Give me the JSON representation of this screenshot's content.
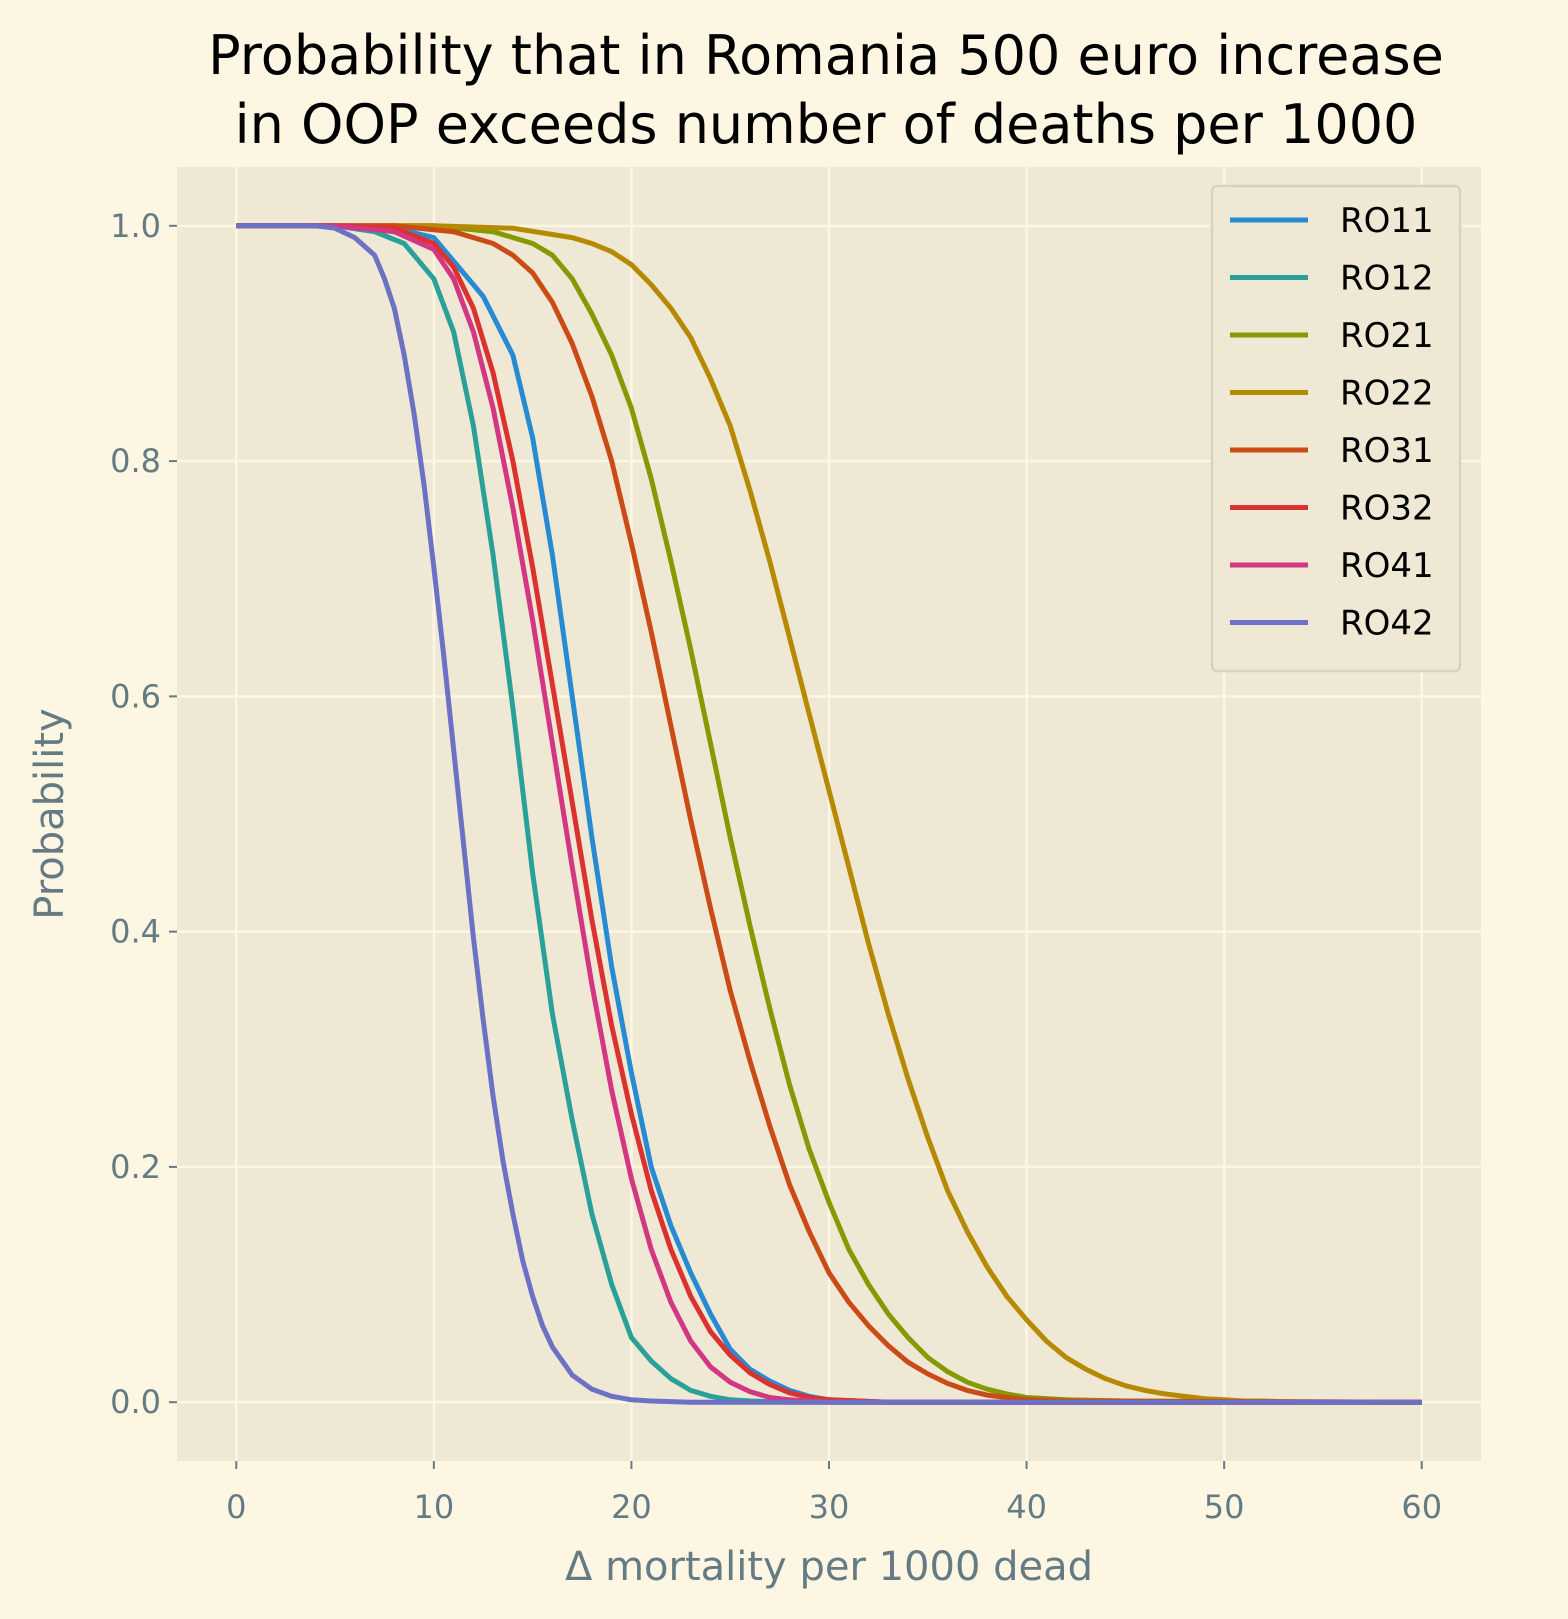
{
  "chart_data": {
    "type": "line",
    "title_lines": [
      "Probability that in Romania 500 euro increase",
      "in OOP exceeds number of deaths per 1000"
    ],
    "xlabel": "Δ mortality per 1000 dead",
    "ylabel": "Probability",
    "xlim": [
      -3,
      63
    ],
    "ylim": [
      -0.05,
      1.05
    ],
    "xticks": [
      0,
      10,
      20,
      30,
      40,
      50,
      60
    ],
    "yticks": [
      0.0,
      0.2,
      0.4,
      0.6,
      0.8,
      1.0
    ],
    "xtick_labels": [
      "0",
      "10",
      "20",
      "30",
      "40",
      "50",
      "60"
    ],
    "ytick_labels": [
      "0.0",
      "0.2",
      "0.4",
      "0.6",
      "0.8",
      "1.0"
    ],
    "grid": true,
    "legend_position": "top-right",
    "series": [
      {
        "name": "RO11",
        "color": "#268bd2",
        "x": [
          0,
          5,
          8,
          10,
          11,
          12.5,
          14,
          15,
          16,
          17,
          18,
          19,
          20,
          21,
          22,
          23,
          24,
          25,
          26,
          27,
          28,
          29,
          30,
          33,
          60
        ],
        "y": [
          1.0,
          1.0,
          0.998,
          0.99,
          0.97,
          0.94,
          0.89,
          0.82,
          0.72,
          0.6,
          0.48,
          0.37,
          0.28,
          0.2,
          0.15,
          0.11,
          0.075,
          0.045,
          0.028,
          0.018,
          0.01,
          0.005,
          0.002,
          0.0,
          0.0
        ]
      },
      {
        "name": "RO12",
        "color": "#2aa198",
        "x": [
          0,
          5,
          7,
          8.5,
          10,
          11,
          12,
          13,
          14,
          15,
          16,
          17,
          18,
          19,
          20,
          21,
          22,
          23,
          24,
          25,
          26,
          28,
          60
        ],
        "y": [
          1.0,
          1.0,
          0.995,
          0.985,
          0.955,
          0.91,
          0.83,
          0.72,
          0.59,
          0.45,
          0.33,
          0.24,
          0.16,
          0.1,
          0.055,
          0.035,
          0.02,
          0.01,
          0.005,
          0.002,
          0.001,
          0.0,
          0.0
        ]
      },
      {
        "name": "RO21",
        "color": "#859900",
        "x": [
          0,
          10,
          13,
          15,
          16,
          17,
          18,
          19,
          20,
          21,
          22,
          23,
          24,
          25,
          26,
          27,
          28,
          29,
          30,
          31,
          32,
          33,
          34,
          35,
          36,
          37,
          38,
          39,
          40,
          42,
          45,
          60
        ],
        "y": [
          1.0,
          1.0,
          0.995,
          0.985,
          0.975,
          0.955,
          0.925,
          0.89,
          0.845,
          0.785,
          0.715,
          0.64,
          0.56,
          0.48,
          0.405,
          0.335,
          0.27,
          0.215,
          0.17,
          0.13,
          0.1,
          0.075,
          0.055,
          0.038,
          0.026,
          0.017,
          0.011,
          0.007,
          0.004,
          0.002,
          0.001,
          0.0
        ]
      },
      {
        "name": "RO22",
        "color": "#b58900",
        "x": [
          0,
          10,
          14,
          17,
          18,
          19,
          20,
          21,
          22,
          23,
          24,
          25,
          26,
          27,
          28,
          29,
          30,
          31,
          32,
          33,
          34,
          35,
          36,
          37,
          38,
          39,
          40,
          41,
          42,
          43,
          44,
          45,
          46,
          47,
          48,
          49,
          50,
          51,
          52,
          54,
          57,
          60
        ],
        "y": [
          1.0,
          1.0,
          0.998,
          0.99,
          0.985,
          0.978,
          0.967,
          0.95,
          0.93,
          0.905,
          0.87,
          0.83,
          0.775,
          0.715,
          0.65,
          0.585,
          0.52,
          0.455,
          0.39,
          0.33,
          0.275,
          0.225,
          0.18,
          0.145,
          0.115,
          0.09,
          0.07,
          0.052,
          0.038,
          0.028,
          0.02,
          0.014,
          0.01,
          0.007,
          0.005,
          0.003,
          0.002,
          0.001,
          0.001,
          0.0,
          0.0,
          0.0
        ]
      },
      {
        "name": "RO31",
        "color": "#cb4b16",
        "x": [
          0,
          8,
          11,
          13,
          14,
          15,
          16,
          17,
          18,
          19,
          20,
          21,
          22,
          23,
          24,
          25,
          26,
          27,
          28,
          29,
          30,
          31,
          32,
          33,
          34,
          35,
          36,
          37,
          38,
          39,
          40,
          42,
          60
        ],
        "y": [
          1.0,
          1.0,
          0.995,
          0.985,
          0.975,
          0.96,
          0.935,
          0.9,
          0.855,
          0.8,
          0.73,
          0.655,
          0.575,
          0.495,
          0.42,
          0.35,
          0.29,
          0.235,
          0.185,
          0.145,
          0.11,
          0.085,
          0.065,
          0.048,
          0.034,
          0.024,
          0.016,
          0.01,
          0.006,
          0.004,
          0.002,
          0.001,
          0.0
        ]
      },
      {
        "name": "RO32",
        "color": "#dc322f",
        "x": [
          0,
          5,
          8,
          10,
          11,
          12,
          13,
          14,
          15,
          16,
          17,
          18,
          19,
          20,
          21,
          22,
          23,
          24,
          25,
          26,
          27,
          28,
          29,
          30,
          33,
          60
        ],
        "y": [
          1.0,
          1.0,
          0.998,
          0.985,
          0.965,
          0.93,
          0.875,
          0.8,
          0.71,
          0.61,
          0.51,
          0.41,
          0.32,
          0.245,
          0.18,
          0.13,
          0.09,
          0.06,
          0.04,
          0.025,
          0.015,
          0.008,
          0.004,
          0.002,
          0.0,
          0.0
        ]
      },
      {
        "name": "RO41",
        "color": "#d33682",
        "x": [
          0,
          5,
          8,
          10,
          11,
          12,
          13,
          14,
          15,
          16,
          17,
          18,
          19,
          20,
          21,
          22,
          23,
          24,
          25,
          26,
          27,
          28,
          30,
          60
        ],
        "y": [
          1.0,
          1.0,
          0.995,
          0.98,
          0.955,
          0.91,
          0.845,
          0.76,
          0.665,
          0.56,
          0.455,
          0.355,
          0.265,
          0.19,
          0.13,
          0.085,
          0.052,
          0.03,
          0.017,
          0.009,
          0.004,
          0.002,
          0.0,
          0.0
        ]
      },
      {
        "name": "RO42",
        "color": "#6c71c4",
        "x": [
          0,
          4,
          5,
          6,
          7,
          7.5,
          8,
          8.5,
          9,
          9.5,
          10,
          10.5,
          11,
          11.5,
          12,
          12.5,
          13,
          13.5,
          14,
          14.5,
          15,
          15.5,
          16,
          17,
          18,
          19,
          20,
          21,
          23,
          25,
          60
        ],
        "y": [
          1.0,
          1.0,
          0.998,
          0.99,
          0.975,
          0.955,
          0.93,
          0.89,
          0.84,
          0.78,
          0.71,
          0.635,
          0.555,
          0.475,
          0.395,
          0.325,
          0.26,
          0.205,
          0.16,
          0.12,
          0.09,
          0.065,
          0.047,
          0.023,
          0.011,
          0.005,
          0.002,
          0.001,
          0.0,
          0.0,
          0.0
        ]
      }
    ]
  }
}
